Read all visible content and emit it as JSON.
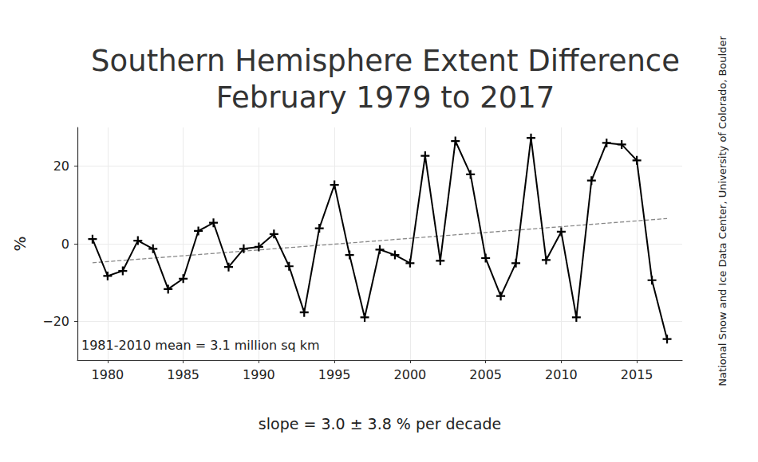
{
  "chart_data": {
    "type": "line",
    "title": "Southern Hemisphere Extent Difference\nFebruary 1979 to 2017",
    "xlabel": "slope = 3.0 ± 3.8 % per decade",
    "ylabel": "%",
    "annotation": "1981-2010 mean = 3.1 million sq km",
    "source": "National Snow and Ice Data Center, University of Colorado, Boulder",
    "x": [
      1979,
      1980,
      1981,
      1982,
      1983,
      1984,
      1985,
      1986,
      1987,
      1988,
      1989,
      1990,
      1991,
      1992,
      1993,
      1994,
      1995,
      1996,
      1997,
      1998,
      1999,
      2000,
      2001,
      2002,
      2003,
      2004,
      2005,
      2006,
      2007,
      2008,
      2009,
      2010,
      2011,
      2012,
      2013,
      2014,
      2015,
      2016,
      2017
    ],
    "series": [
      {
        "color": "#000000",
        "marker": "plus",
        "line_style": "solid",
        "values": [
          1.2,
          -8.3,
          -7.0,
          0.8,
          -1.3,
          -11.7,
          -9.0,
          3.3,
          5.4,
          -6.0,
          -1.3,
          -0.8,
          2.5,
          -5.8,
          -17.7,
          4.0,
          15.2,
          -2.9,
          -19.0,
          -1.5,
          -2.9,
          -5.0,
          22.7,
          -4.4,
          26.5,
          17.9,
          -3.7,
          -13.5,
          -5.0,
          27.3,
          -4.2,
          3.1,
          -19.0,
          16.3,
          26.0,
          25.6,
          21.5,
          -9.4,
          -24.6
        ]
      },
      {
        "color": "#888888",
        "line_style": "dashed",
        "x": [
          1979,
          2017
        ],
        "values": [
          -4.9,
          6.5
        ]
      }
    ],
    "xlim": [
      1978,
      2018
    ],
    "xticks": [
      1980,
      1985,
      1990,
      1995,
      2000,
      2005,
      2010,
      2015
    ],
    "ylim": [
      -30,
      30
    ],
    "yticks": [
      {
        "value": -20,
        "label": "−20"
      },
      0,
      20
    ],
    "grid": true
  }
}
